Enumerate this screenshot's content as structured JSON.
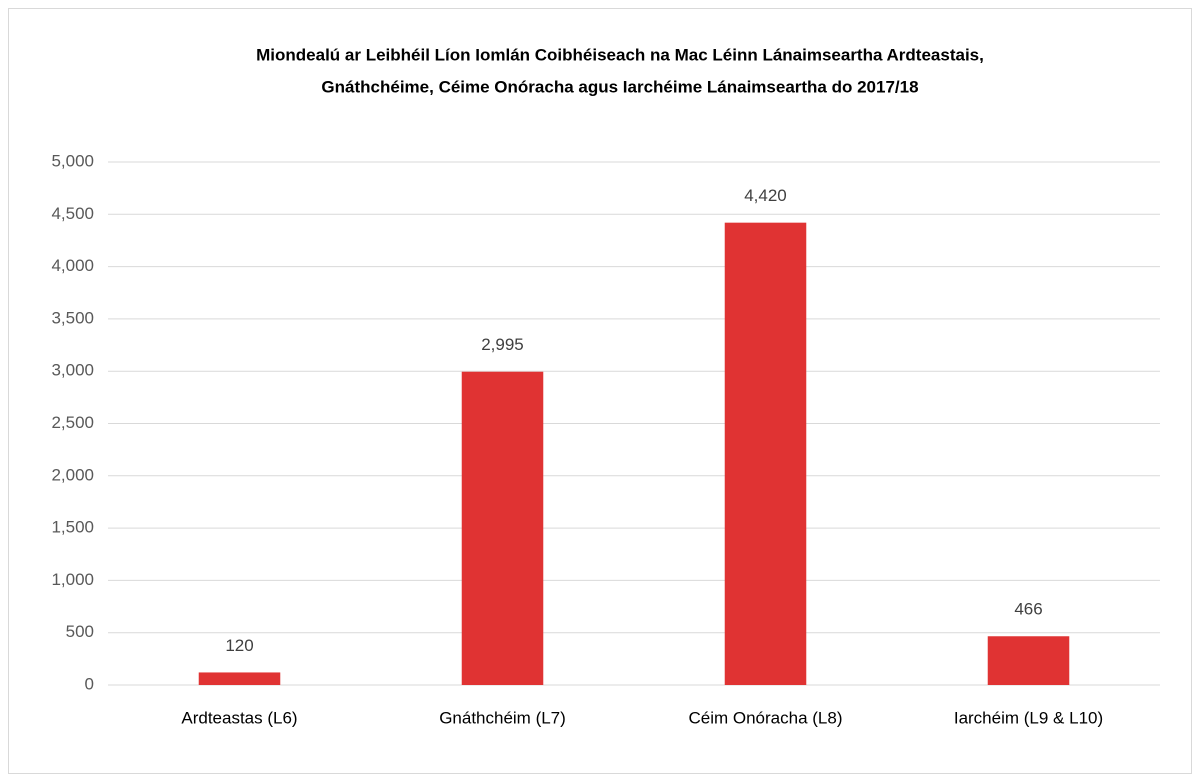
{
  "chart_data": {
    "type": "bar",
    "title": [
      "Miondealú ar Leibhéil Líon Iomlán Coibhéiseach na Mac Léinn Lánaimseartha Ardteastais,",
      "Gnáthchéime, Céime Onóracha agus Iarchéime Lánaimseartha do 2017/18"
    ],
    "categories": [
      "Ardteastas (L6)",
      "Gnáthchéim (L7)",
      "Céim Onóracha (L8)",
      "Iarchéim (L9 & L10)"
    ],
    "values": [
      120,
      2995,
      4420,
      466
    ],
    "value_labels": [
      "120",
      "2,995",
      "4,420",
      "466"
    ],
    "color": "#e03333",
    "ylim": [
      0,
      5000
    ],
    "yticks": [
      0,
      500,
      {
        "value": 1000,
        "label": "1,000"
      },
      {
        "value": 1500,
        "label": "1,500"
      },
      {
        "value": 2000,
        "label": "2,000"
      },
      {
        "value": 2500,
        "label": "2,500"
      },
      {
        "value": 3000,
        "label": "3,000"
      },
      {
        "value": 3500,
        "label": "3,500"
      },
      {
        "value": 4000,
        "label": "4,000"
      },
      {
        "value": 4500,
        "label": "4,500"
      },
      {
        "value": 5000,
        "label": "5,000"
      }
    ],
    "grid": true
  }
}
